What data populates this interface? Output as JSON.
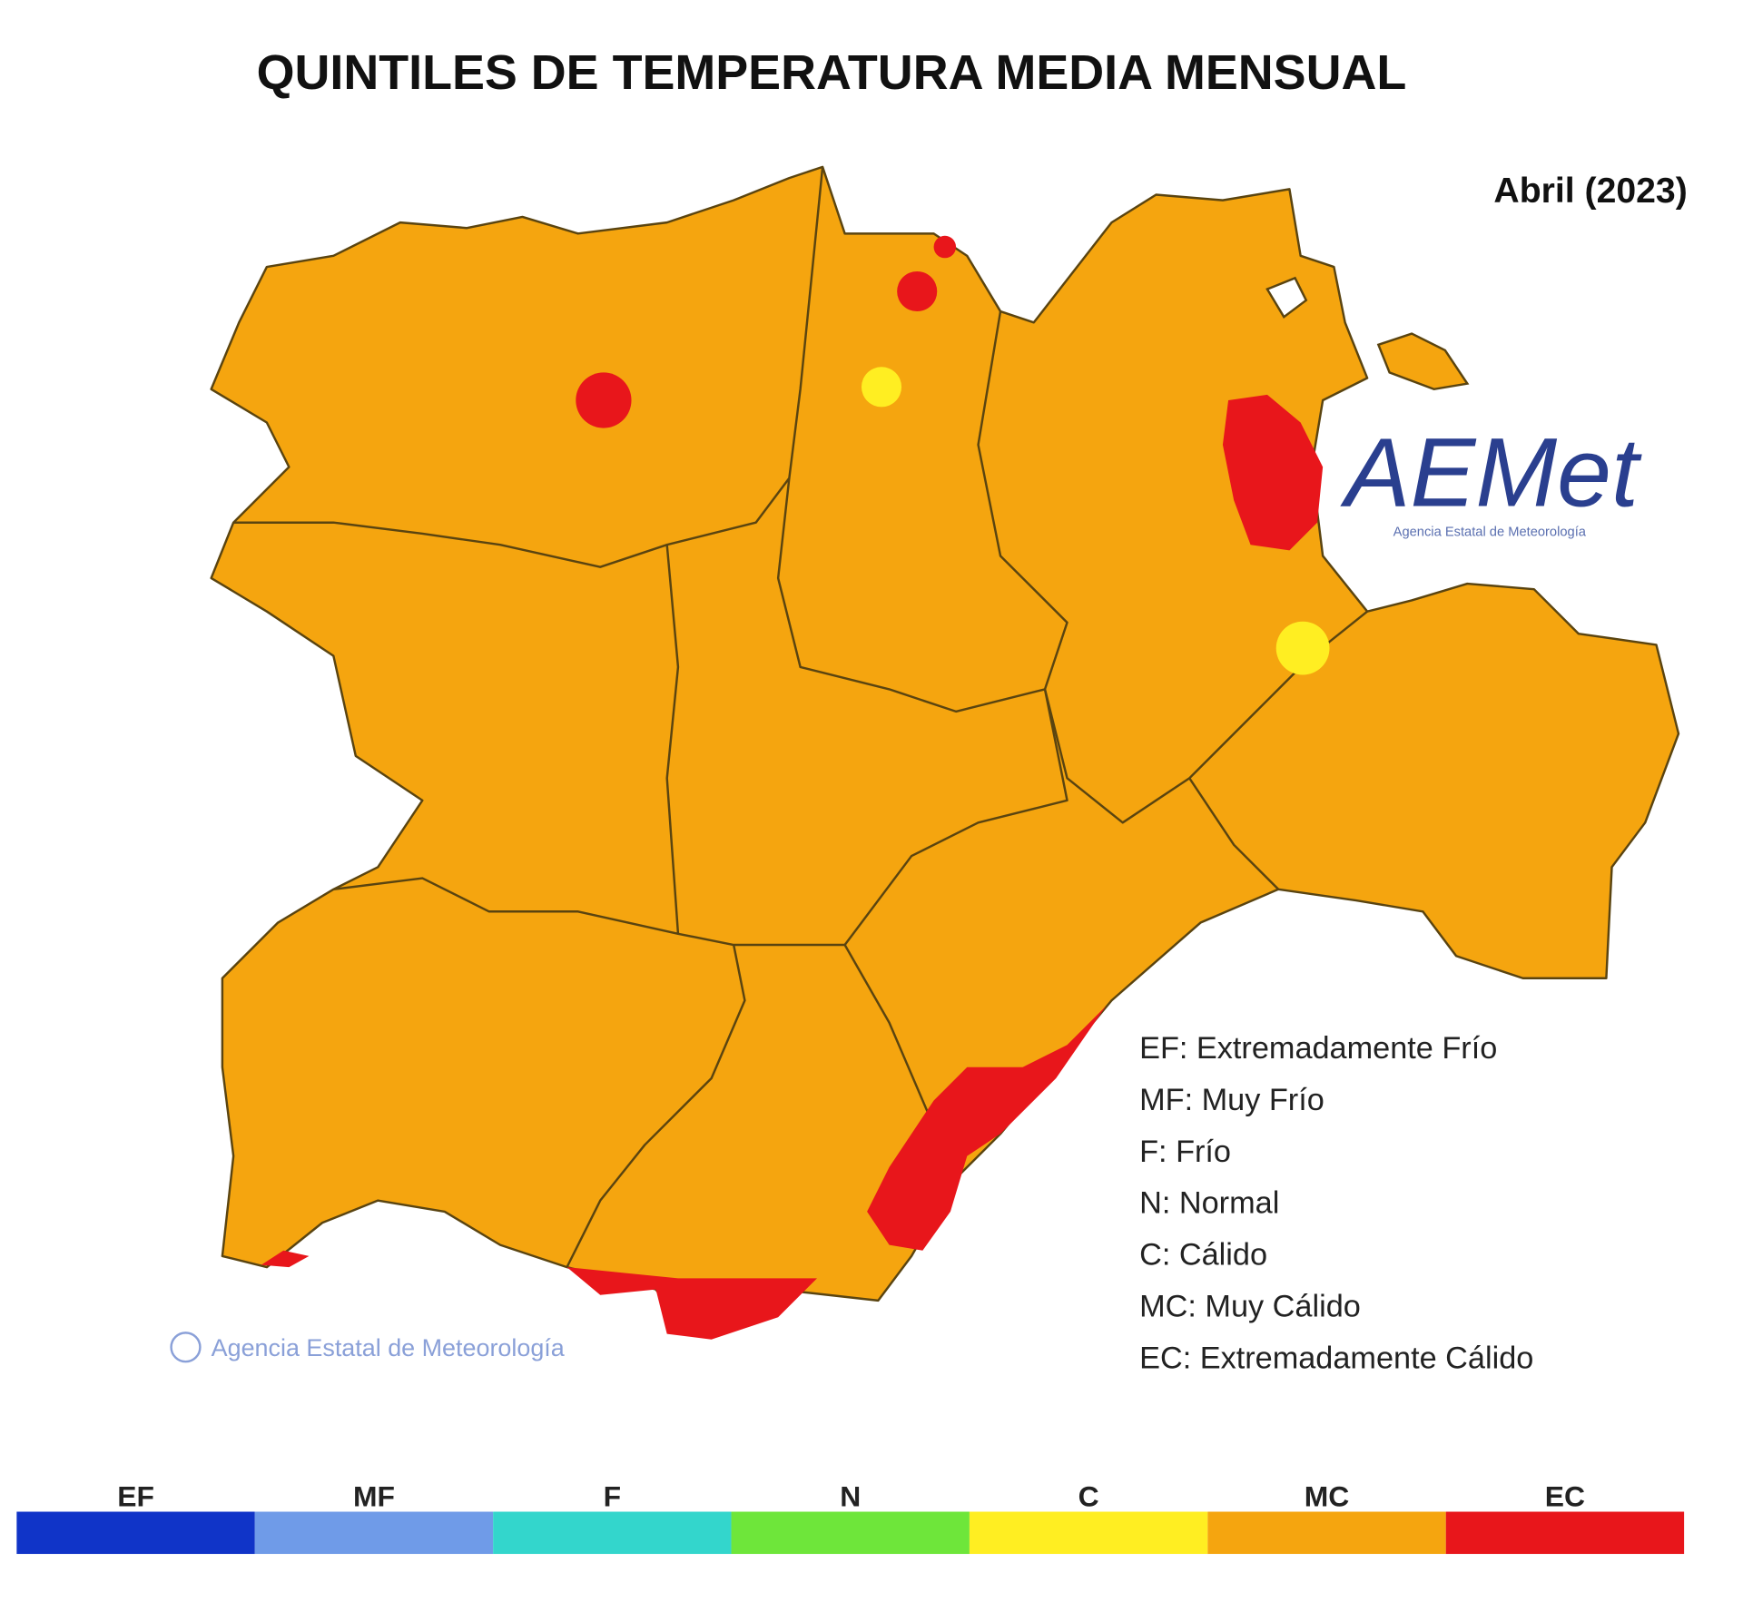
{
  "header": {
    "title": "QUINTILES DE TEMPERATURA MEDIA MENSUAL",
    "period": "Abril (2023)"
  },
  "logo": {
    "name": "AEMet",
    "subtitle": "Agencia Estatal de Meteorología"
  },
  "credit": "Agencia Estatal de Meteorología",
  "legend": {
    "entries": [
      "EF: Extremadamente Frío",
      "MF: Muy Frío",
      "F: Frío",
      "N: Normal",
      "C: Cálido",
      "MC: Muy Cálido",
      "EC: Extremadamente Cálido"
    ]
  },
  "scale": {
    "classes": [
      {
        "code": "EF",
        "color": "#1034c8"
      },
      {
        "code": "MF",
        "color": "#6f9be8"
      },
      {
        "code": "F",
        "color": "#33d6cc"
      },
      {
        "code": "N",
        "color": "#6ee63a"
      },
      {
        "code": "C",
        "color": "#ffee22"
      },
      {
        "code": "MC",
        "color": "#f5a50f"
      },
      {
        "code": "EC",
        "color": "#e8161b"
      }
    ]
  }
}
